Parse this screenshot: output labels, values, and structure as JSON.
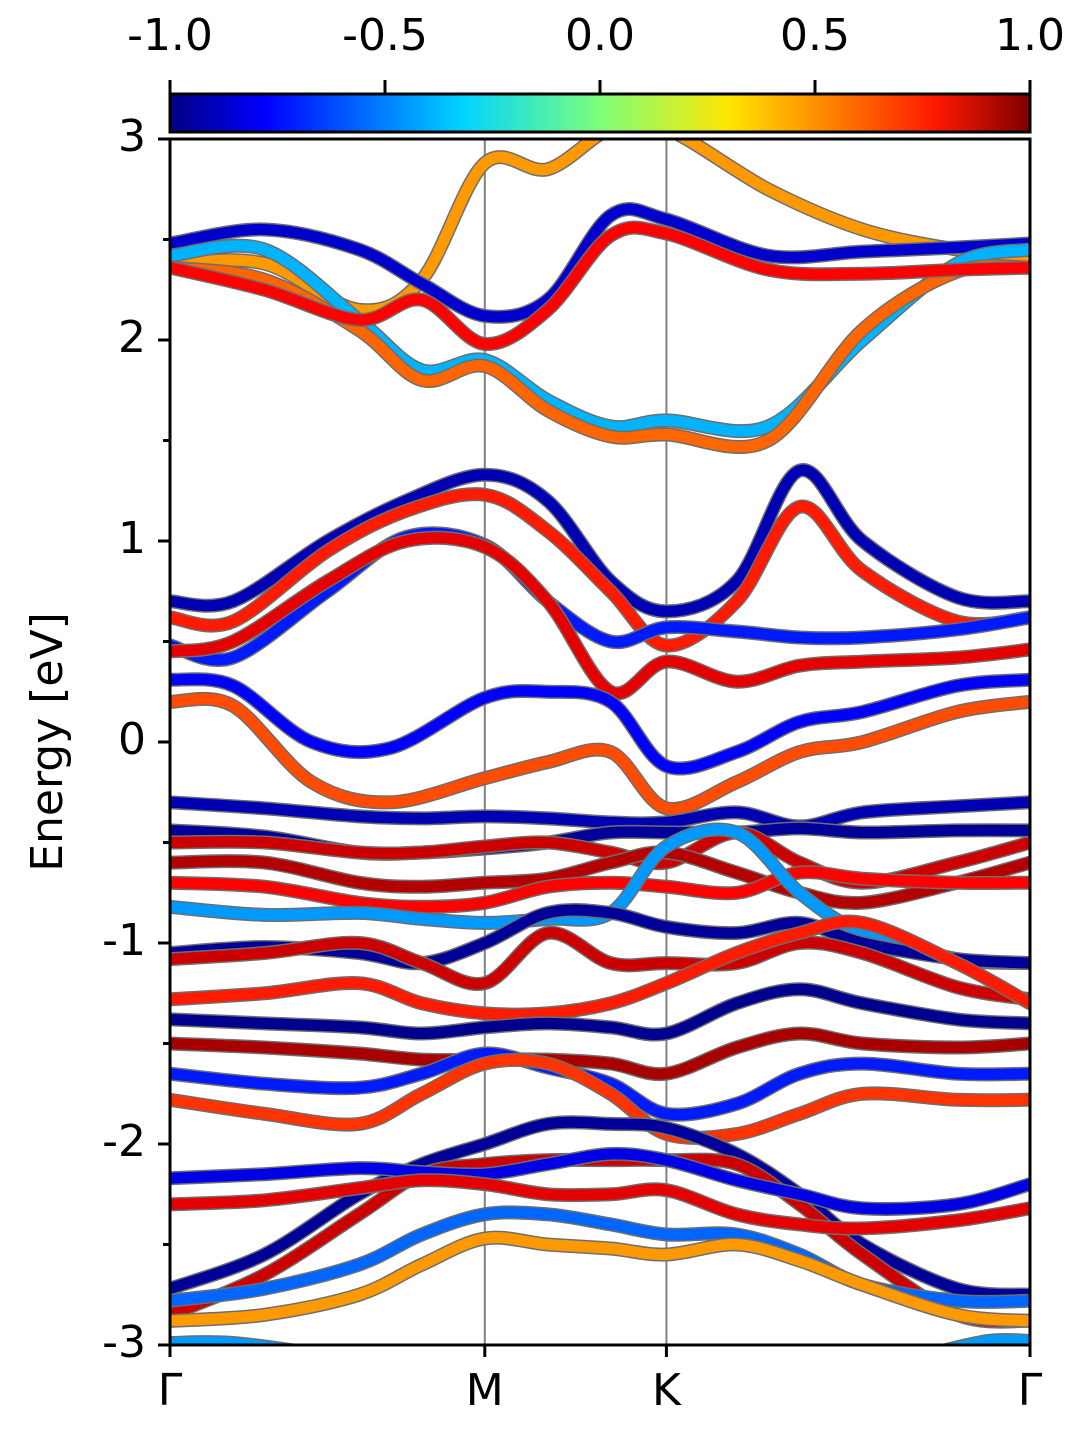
{
  "chart_data": {
    "type": "line",
    "title": "",
    "xlabel": "",
    "ylabel": "Energy [eV]",
    "ylim": [
      -3,
      3
    ],
    "yticks": [
      -3,
      -2,
      -1,
      0,
      1,
      2,
      3
    ],
    "yticklabels": [
      "-3",
      "-2",
      "-1",
      "0",
      "1",
      "2",
      "3"
    ],
    "x_ticks": [
      {
        "label": "Γ",
        "pos": 0.0
      },
      {
        "label": "M",
        "pos": 1.0
      },
      {
        "label": "K",
        "pos": 1.577
      },
      {
        "label": "Γ",
        "pos": 2.732
      }
    ],
    "grid": false,
    "colorbar": {
      "ticks": [
        -1.0,
        -0.5,
        0.0,
        0.5,
        1.0
      ],
      "ticklabels": [
        "-1.0",
        "-0.5",
        "0.0",
        "0.5",
        "1.0"
      ],
      "range": [
        -1.0,
        1.0
      ],
      "colormap": "jet",
      "placement": "top"
    },
    "series": [
      {
        "x": [
          0,
          0.3,
          0.6,
          0.8,
          1.0,
          1.2,
          1.4,
          1.577,
          1.9,
          2.2,
          2.5,
          2.732
        ],
        "values": [
          2.38,
          2.38,
          2.15,
          2.3,
          2.88,
          2.85,
          3.05,
          3.05,
          2.75,
          2.55,
          2.45,
          2.42
        ],
        "weight": 0.45
      },
      {
        "x": [
          0,
          0.3,
          0.6,
          0.8,
          1.0,
          1.2,
          1.4,
          1.577,
          1.9,
          2.2,
          2.5,
          2.732
        ],
        "values": [
          2.48,
          2.55,
          2.45,
          2.28,
          2.12,
          2.2,
          2.62,
          2.6,
          2.42,
          2.44,
          2.46,
          2.48
        ],
        "weight": -0.85
      },
      {
        "x": [
          0,
          0.3,
          0.6,
          0.8,
          1.0,
          1.2,
          1.4,
          1.577,
          1.9,
          2.2,
          2.5,
          2.732
        ],
        "values": [
          2.42,
          2.45,
          2.1,
          1.85,
          1.9,
          1.7,
          1.57,
          1.6,
          1.57,
          2.0,
          2.38,
          2.45
        ],
        "weight": -0.4
      },
      {
        "x": [
          0,
          0.3,
          0.6,
          0.8,
          1.0,
          1.2,
          1.4,
          1.577,
          1.9,
          2.2,
          2.5,
          2.732
        ],
        "values": [
          2.36,
          2.3,
          2.05,
          1.8,
          1.87,
          1.65,
          1.52,
          1.53,
          1.5,
          2.05,
          2.34,
          2.36
        ],
        "weight": 0.55
      },
      {
        "x": [
          0,
          0.3,
          0.6,
          0.8,
          1.0,
          1.2,
          1.4,
          1.577,
          1.9,
          2.2,
          2.5,
          2.732
        ],
        "values": [
          2.36,
          2.25,
          2.1,
          2.2,
          1.98,
          2.15,
          2.52,
          2.53,
          2.35,
          2.33,
          2.35,
          2.36
        ],
        "weight": 0.75
      },
      {
        "x": [
          0,
          0.2,
          0.5,
          0.75,
          1.0,
          1.2,
          1.4,
          1.577,
          1.8,
          2.0,
          2.2,
          2.5,
          2.732
        ],
        "values": [
          0.7,
          0.7,
          1.0,
          1.2,
          1.33,
          1.2,
          0.8,
          0.65,
          0.8,
          1.35,
          1.0,
          0.72,
          0.7
        ],
        "weight": -0.9
      },
      {
        "x": [
          0,
          0.2,
          0.5,
          0.75,
          1.0,
          1.2,
          1.4,
          1.577,
          1.8,
          2.0,
          2.2,
          2.5,
          2.732
        ],
        "values": [
          0.62,
          0.6,
          0.95,
          1.15,
          1.23,
          1.05,
          0.75,
          0.48,
          0.7,
          1.17,
          0.85,
          0.6,
          0.62
        ],
        "weight": 0.7
      },
      {
        "x": [
          0,
          0.2,
          0.5,
          0.75,
          1.0,
          1.2,
          1.4,
          1.577,
          1.8,
          2.0,
          2.2,
          2.5,
          2.732
        ],
        "values": [
          0.48,
          0.42,
          0.75,
          1.02,
          0.98,
          0.7,
          0.5,
          0.57,
          0.55,
          0.52,
          0.52,
          0.56,
          0.62
        ],
        "weight": -0.7
      },
      {
        "x": [
          0,
          0.2,
          0.5,
          0.75,
          1.0,
          1.2,
          1.4,
          1.577,
          1.8,
          2.0,
          2.2,
          2.5,
          2.732
        ],
        "values": [
          0.45,
          0.5,
          0.8,
          1.0,
          0.97,
          0.7,
          0.25,
          0.4,
          0.3,
          0.38,
          0.4,
          0.42,
          0.46
        ],
        "weight": 0.8
      },
      {
        "x": [
          0,
          0.2,
          0.45,
          0.7,
          1.0,
          1.2,
          1.4,
          1.577,
          1.8,
          2.0,
          2.2,
          2.5,
          2.732
        ],
        "values": [
          0.31,
          0.28,
          0.0,
          -0.03,
          0.22,
          0.25,
          0.2,
          -0.12,
          -0.05,
          0.1,
          0.15,
          0.28,
          0.31
        ],
        "weight": -0.75
      },
      {
        "x": [
          0,
          0.2,
          0.45,
          0.7,
          1.0,
          1.2,
          1.4,
          1.577,
          1.8,
          2.0,
          2.2,
          2.5,
          2.732
        ],
        "values": [
          0.2,
          0.18,
          -0.2,
          -0.3,
          -0.18,
          -0.1,
          -0.05,
          -0.33,
          -0.2,
          -0.05,
          0.0,
          0.15,
          0.2
        ],
        "weight": 0.6
      },
      {
        "x": [
          0,
          0.3,
          0.6,
          0.8,
          1.0,
          1.2,
          1.4,
          1.577,
          1.8,
          2.0,
          2.2,
          2.5,
          2.732
        ],
        "values": [
          -0.3,
          -0.33,
          -0.37,
          -0.38,
          -0.37,
          -0.38,
          -0.4,
          -0.4,
          -0.35,
          -0.42,
          -0.35,
          -0.32,
          -0.3
        ],
        "weight": -0.9
      },
      {
        "x": [
          0,
          0.3,
          0.6,
          0.8,
          1.0,
          1.2,
          1.4,
          1.577,
          1.8,
          2.0,
          2.2,
          2.5,
          2.732
        ],
        "values": [
          -0.44,
          -0.47,
          -0.55,
          -0.55,
          -0.53,
          -0.5,
          -0.45,
          -0.45,
          -0.45,
          -0.43,
          -0.45,
          -0.44,
          -0.44
        ],
        "weight": -0.95
      },
      {
        "x": [
          0,
          0.3,
          0.6,
          0.8,
          1.0,
          1.2,
          1.4,
          1.577,
          1.8,
          2.0,
          2.2,
          2.5,
          2.732
        ],
        "values": [
          -0.5,
          -0.5,
          -0.55,
          -0.55,
          -0.52,
          -0.5,
          -0.55,
          -0.6,
          -0.45,
          -0.6,
          -0.7,
          -0.6,
          -0.5
        ],
        "weight": 0.85
      },
      {
        "x": [
          0,
          0.3,
          0.6,
          0.8,
          1.0,
          1.2,
          1.4,
          1.577,
          1.8,
          2.0,
          2.2,
          2.5,
          2.732
        ],
        "values": [
          -0.6,
          -0.6,
          -0.7,
          -0.72,
          -0.7,
          -0.68,
          -0.6,
          -0.55,
          -0.65,
          -0.75,
          -0.8,
          -0.7,
          -0.6
        ],
        "weight": 0.9
      },
      {
        "x": [
          0,
          0.3,
          0.6,
          0.8,
          1.0,
          1.2,
          1.4,
          1.577,
          1.8,
          2.0,
          2.2,
          2.5,
          2.732
        ],
        "values": [
          -0.7,
          -0.72,
          -0.8,
          -0.82,
          -0.8,
          -0.72,
          -0.7,
          -0.72,
          -0.75,
          -0.65,
          -0.68,
          -0.7,
          -0.7
        ],
        "weight": 0.75
      },
      {
        "x": [
          0,
          0.3,
          0.6,
          0.8,
          1.0,
          1.2,
          1.4,
          1.577,
          1.8,
          2.0,
          2.2,
          2.5,
          2.732
        ],
        "values": [
          -0.82,
          -0.86,
          -0.85,
          -0.88,
          -0.9,
          -0.88,
          -0.85,
          -0.52,
          -0.45,
          -0.75,
          -0.95,
          -1.08,
          -1.1
        ],
        "weight": -0.45
      },
      {
        "x": [
          0,
          0.3,
          0.6,
          0.8,
          1.0,
          1.2,
          1.4,
          1.577,
          1.8,
          2.0,
          2.2,
          2.5,
          2.732
        ],
        "values": [
          -1.05,
          -1.02,
          -1.05,
          -1.1,
          -1.0,
          -0.85,
          -0.85,
          -0.92,
          -0.95,
          -0.9,
          -1.0,
          -1.08,
          -1.1
        ],
        "weight": -0.95
      },
      {
        "x": [
          0,
          0.3,
          0.6,
          0.8,
          1.0,
          1.2,
          1.4,
          1.577,
          1.8,
          2.0,
          2.2,
          2.5,
          2.732
        ],
        "values": [
          -1.08,
          -1.05,
          -1.0,
          -1.1,
          -1.2,
          -0.95,
          -1.1,
          -1.1,
          -1.1,
          -1.0,
          -1.05,
          -1.22,
          -1.28
        ],
        "weight": 0.85
      },
      {
        "x": [
          0,
          0.3,
          0.6,
          0.8,
          1.0,
          1.2,
          1.4,
          1.577,
          1.8,
          2.0,
          2.2,
          2.5,
          2.732
        ],
        "values": [
          -1.28,
          -1.25,
          -1.2,
          -1.3,
          -1.35,
          -1.35,
          -1.3,
          -1.2,
          -1.05,
          -0.95,
          -0.9,
          -1.1,
          -1.3
        ],
        "weight": 0.7
      },
      {
        "x": [
          0,
          0.3,
          0.6,
          0.8,
          1.0,
          1.2,
          1.4,
          1.577,
          1.8,
          2.0,
          2.2,
          2.5,
          2.732
        ],
        "values": [
          -1.38,
          -1.4,
          -1.42,
          -1.45,
          -1.42,
          -1.4,
          -1.42,
          -1.45,
          -1.3,
          -1.23,
          -1.3,
          -1.38,
          -1.4
        ],
        "weight": -0.97
      },
      {
        "x": [
          0,
          0.3,
          0.6,
          0.8,
          1.0,
          1.2,
          1.4,
          1.577,
          1.8,
          2.0,
          2.2,
          2.5,
          2.732
        ],
        "values": [
          -1.5,
          -1.52,
          -1.55,
          -1.58,
          -1.58,
          -1.58,
          -1.6,
          -1.65,
          -1.52,
          -1.45,
          -1.5,
          -1.52,
          -1.5
        ],
        "weight": 0.92
      },
      {
        "x": [
          0,
          0.3,
          0.6,
          0.8,
          1.0,
          1.2,
          1.4,
          1.577,
          1.8,
          2.0,
          2.2,
          2.5,
          2.732
        ],
        "values": [
          -1.65,
          -1.7,
          -1.72,
          -1.65,
          -1.55,
          -1.62,
          -1.7,
          -1.85,
          -1.8,
          -1.65,
          -1.6,
          -1.65,
          -1.65
        ],
        "weight": -0.7
      },
      {
        "x": [
          0,
          0.3,
          0.6,
          0.8,
          1.0,
          1.2,
          1.4,
          1.577,
          1.8,
          2.0,
          2.2,
          2.5,
          2.732
        ],
        "values": [
          -1.78,
          -1.85,
          -1.9,
          -1.75,
          -1.6,
          -1.6,
          -1.75,
          -1.95,
          -1.95,
          -1.85,
          -1.75,
          -1.78,
          -1.78
        ],
        "weight": 0.65
      },
      {
        "x": [
          0,
          0.3,
          0.6,
          0.8,
          1.0,
          1.2,
          1.4,
          1.577,
          1.8,
          2.0,
          2.2,
          2.5,
          2.732
        ],
        "values": [
          -2.72,
          -2.55,
          -2.25,
          -2.1,
          -2.0,
          -1.9,
          -1.9,
          -1.92,
          -2.05,
          -2.25,
          -2.5,
          -2.72,
          -2.75
        ],
        "weight": -0.95
      },
      {
        "x": [
          0,
          0.3,
          0.6,
          0.8,
          1.0,
          1.2,
          1.4,
          1.577,
          1.8,
          2.0,
          2.2,
          2.5,
          2.732
        ],
        "values": [
          -2.85,
          -2.65,
          -2.35,
          -2.15,
          -2.1,
          -2.08,
          -2.08,
          -2.08,
          -2.1,
          -2.3,
          -2.55,
          -2.85,
          -2.88
        ],
        "weight": 0.85
      },
      {
        "x": [
          0,
          0.3,
          0.6,
          0.8,
          1.0,
          1.2,
          1.4,
          1.577,
          1.8,
          2.0,
          2.2,
          2.5,
          2.732
        ],
        "values": [
          -2.78,
          -2.72,
          -2.6,
          -2.45,
          -2.35,
          -2.35,
          -2.4,
          -2.45,
          -2.45,
          -2.55,
          -2.7,
          -2.78,
          -2.78
        ],
        "weight": -0.55
      },
      {
        "x": [
          0,
          0.3,
          0.6,
          0.8,
          1.0,
          1.2,
          1.4,
          1.577,
          1.8,
          2.0,
          2.2,
          2.5,
          2.732
        ],
        "values": [
          -2.88,
          -2.85,
          -2.75,
          -2.6,
          -2.47,
          -2.5,
          -2.52,
          -2.55,
          -2.5,
          -2.58,
          -2.7,
          -2.85,
          -2.88
        ],
        "weight": 0.45
      },
      {
        "x": [
          0,
          0.3,
          0.6,
          0.8,
          1.0,
          1.2,
          1.4,
          1.577,
          1.8,
          2.0,
          2.2,
          2.5,
          2.732
        ],
        "values": [
          -2.17,
          -2.15,
          -2.12,
          -2.14,
          -2.15,
          -2.1,
          -2.05,
          -2.08,
          -2.18,
          -2.25,
          -2.32,
          -2.3,
          -2.2
        ],
        "weight": -0.8
      },
      {
        "x": [
          0,
          0.3,
          0.6,
          0.8,
          1.0,
          1.2,
          1.4,
          1.577,
          1.8,
          2.0,
          2.2,
          2.5,
          2.732
        ],
        "values": [
          -2.3,
          -2.28,
          -2.22,
          -2.18,
          -2.2,
          -2.25,
          -2.25,
          -2.23,
          -2.35,
          -2.4,
          -2.42,
          -2.38,
          -2.32
        ],
        "weight": 0.8
      },
      {
        "x": [
          0,
          0.2,
          0.5,
          0.8
        ],
        "values": [
          -2.99,
          -2.99,
          -3.05,
          -3.1
        ],
        "weight": -0.45
      },
      {
        "x": [
          2.4,
          2.6,
          2.732
        ],
        "values": [
          -3.05,
          -2.98,
          -2.98
        ],
        "weight": -0.45
      }
    ]
  }
}
